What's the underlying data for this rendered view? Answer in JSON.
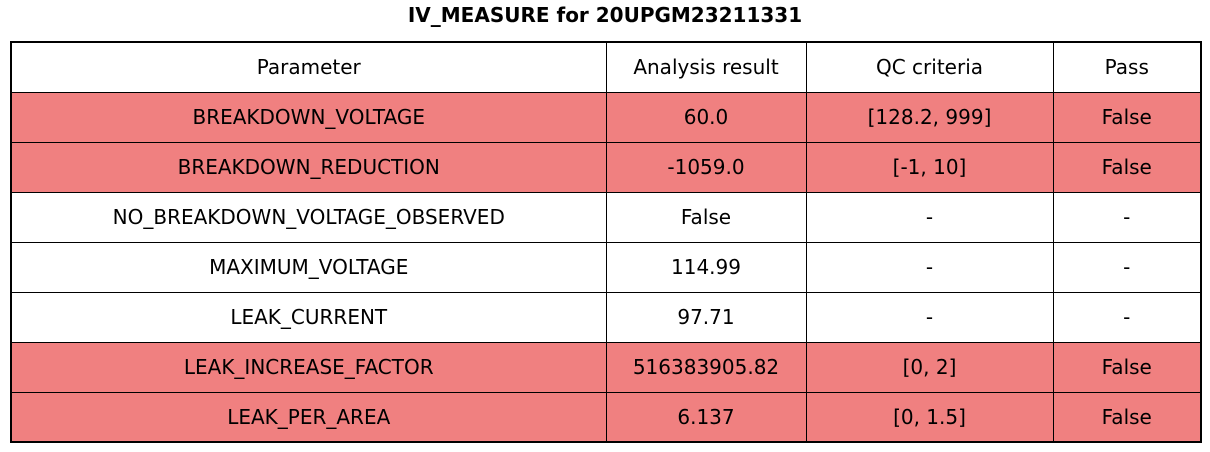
{
  "page_title": "IV_MEASURE for 20UPGM23211331",
  "chart_data": {
    "type": "table",
    "title": "IV_MEASURE for 20UPGM23211331",
    "columns": [
      "Parameter",
      "Analysis result",
      "QC criteria",
      "Pass"
    ],
    "rows": [
      {
        "parameter": "BREAKDOWN_VOLTAGE",
        "analysis_result": "60.0",
        "qc_criteria": "[128.2, 999]",
        "pass": "False",
        "state": "fail"
      },
      {
        "parameter": "BREAKDOWN_REDUCTION",
        "analysis_result": "-1059.0",
        "qc_criteria": "[-1, 10]",
        "pass": "False",
        "state": "fail"
      },
      {
        "parameter": "NO_BREAKDOWN_VOLTAGE_OBSERVED",
        "analysis_result": "False",
        "qc_criteria": "-",
        "pass": "-",
        "state": "ok"
      },
      {
        "parameter": "MAXIMUM_VOLTAGE",
        "analysis_result": "114.99",
        "qc_criteria": "-",
        "pass": "-",
        "state": "ok"
      },
      {
        "parameter": "LEAK_CURRENT",
        "analysis_result": "97.71",
        "qc_criteria": "-",
        "pass": "-",
        "state": "ok"
      },
      {
        "parameter": "LEAK_INCREASE_FACTOR",
        "analysis_result": "516383905.82",
        "qc_criteria": "[0, 2]",
        "pass": "False",
        "state": "fail"
      },
      {
        "parameter": "LEAK_PER_AREA",
        "analysis_result": "6.137",
        "qc_criteria": "[0, 1.5]",
        "pass": "False",
        "state": "fail"
      }
    ],
    "colors": {
      "fail_row_bg": "#f08080",
      "ok_row_bg": "#ffffff",
      "border": "#000000",
      "text": "#000000"
    },
    "layout": {
      "grid": true,
      "column_align": "center",
      "header_position": "top"
    }
  }
}
